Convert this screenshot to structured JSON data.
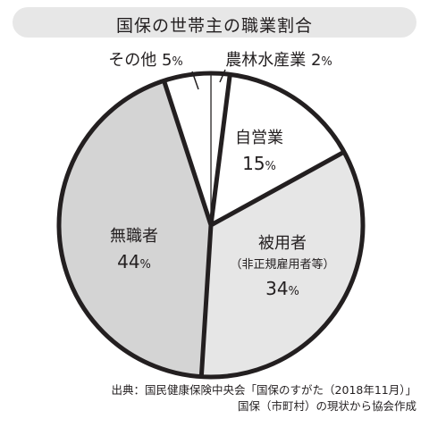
{
  "chart_data": {
    "type": "pie",
    "title": "国保の世帯主の職業割合",
    "unit": "%",
    "slices": [
      {
        "label": "農林水産業",
        "sublabel": "",
        "value": 2,
        "color": "#ffffff"
      },
      {
        "label": "自営業",
        "sublabel": "",
        "value": 15,
        "color": "#ffffff"
      },
      {
        "label": "被用者",
        "sublabel": "（非正規雇用者等）",
        "value": 34,
        "color": "#e6e6e6"
      },
      {
        "label": "無職者",
        "sublabel": "",
        "value": 44,
        "color": "#d4d4d4"
      },
      {
        "label": "その他",
        "sublabel": "",
        "value": 5,
        "color": "#ffffff"
      }
    ]
  },
  "source": {
    "line1": "出典：国民健康保険中央会「国保のすがた（2018年11月）」",
    "line2": "国保（市町村）の現状から協会作成"
  }
}
